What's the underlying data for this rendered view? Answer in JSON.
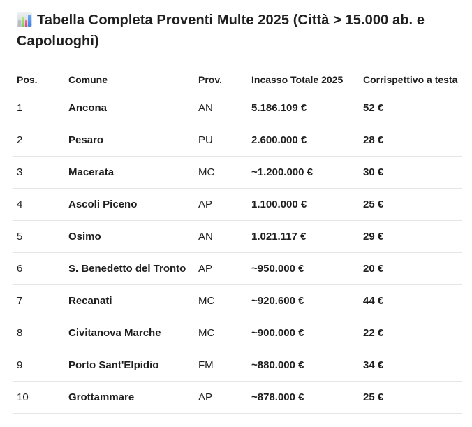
{
  "title": {
    "icon": "bar-chart-emoji",
    "text": "Tabella Completa Proventi Multe 2025 (Città > 15.000 ab. e Capoluoghi)"
  },
  "colors": {
    "text": "#1f1f1f",
    "row_divider": "#e6e6e6",
    "header_divider": "#cfd1d1",
    "emoji_green": "#7ed04e",
    "emoji_pink": "#e83d78",
    "emoji_blue": "#3c82f0",
    "emoji_gray": "#b7bfc6"
  },
  "table": {
    "columns": [
      "Pos.",
      "Comune",
      "Prov.",
      "Incasso Totale 2025",
      "Corrispettivo a testa"
    ],
    "rows": [
      {
        "pos": "1",
        "comune": "Ancona",
        "prov": "AN",
        "incasso": "5.186.109 €",
        "corrispettivo": "52 €"
      },
      {
        "pos": "2",
        "comune": "Pesaro",
        "prov": "PU",
        "incasso": "2.600.000 €",
        "corrispettivo": "28 €"
      },
      {
        "pos": "3",
        "comune": "Macerata",
        "prov": "MC",
        "incasso": "~1.200.000 €",
        "corrispettivo": "30 €"
      },
      {
        "pos": "4",
        "comune": "Ascoli Piceno",
        "prov": "AP",
        "incasso": "1.100.000 €",
        "corrispettivo": "25 €"
      },
      {
        "pos": "5",
        "comune": "Osimo",
        "prov": "AN",
        "incasso": "1.021.117 €",
        "corrispettivo": "29 €"
      },
      {
        "pos": "6",
        "comune": "S. Benedetto del Tronto",
        "prov": "AP",
        "incasso": "~950.000 €",
        "corrispettivo": "20 €"
      },
      {
        "pos": "7",
        "comune": "Recanati",
        "prov": "MC",
        "incasso": "~920.600 €",
        "corrispettivo": "44 €"
      },
      {
        "pos": "8",
        "comune": "Civitanova Marche",
        "prov": "MC",
        "incasso": "~900.000 €",
        "corrispettivo": "22 €"
      },
      {
        "pos": "9",
        "comune": "Porto Sant'Elpidio",
        "prov": "FM",
        "incasso": "~880.000 €",
        "corrispettivo": "34 €"
      },
      {
        "pos": "10",
        "comune": "Grottammare",
        "prov": "AP",
        "incasso": "~878.000 €",
        "corrispettivo": "25 €"
      }
    ]
  }
}
